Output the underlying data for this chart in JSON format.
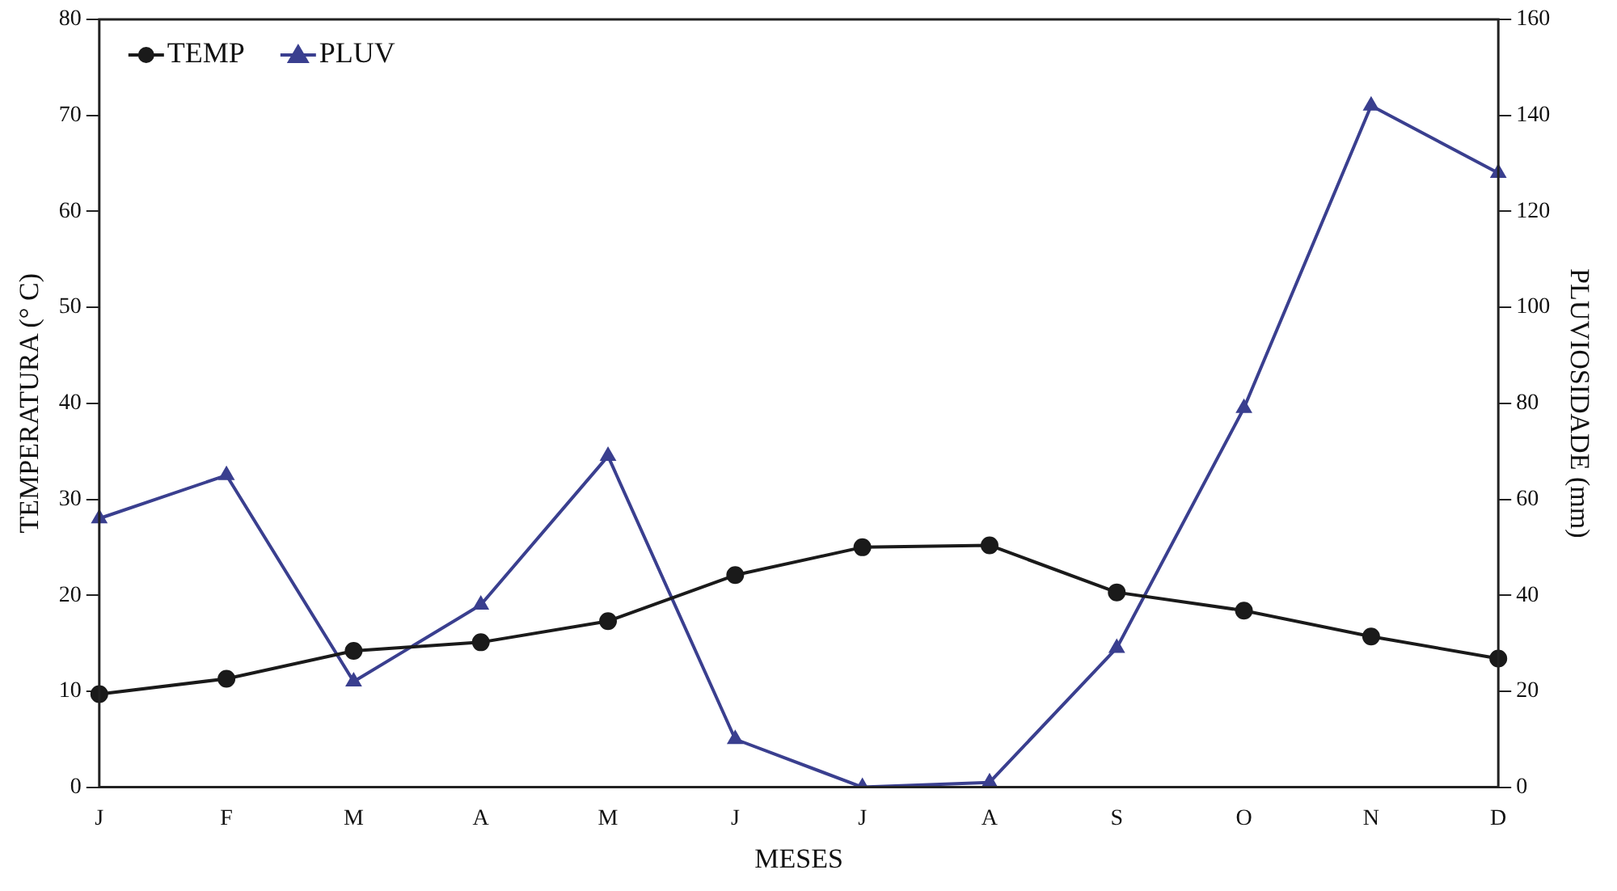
{
  "chart_data": {
    "type": "line",
    "xlabel": "MESES",
    "ylabel": "TEMPERATURA (° C)",
    "y2label": "PLUVIOSIDADE (mm)",
    "categories": [
      "J",
      "F",
      "M",
      "A",
      "M",
      "J",
      "J",
      "A",
      "S",
      "O",
      "N",
      "D"
    ],
    "series": [
      {
        "name": "TEMP",
        "color": "#1a1a1a",
        "marker": "circle",
        "values": [
          9.7,
          11.3,
          14.2,
          15.1,
          17.3,
          22.1,
          25.0,
          25.2,
          20.3,
          18.4,
          15.7,
          13.4
        ]
      },
      {
        "name": "PLUV",
        "color": "#3a3f8f",
        "marker": "triangle",
        "axis": "y2",
        "values": [
          56,
          65,
          22,
          38,
          69,
          10,
          0,
          1,
          29,
          79,
          142,
          128
        ]
      }
    ],
    "ylim": [
      0,
      80
    ],
    "yticks": [
      0,
      10,
      20,
      30,
      40,
      50,
      60,
      70,
      80
    ],
    "y2lim": [
      0,
      160
    ],
    "y2ticks": [
      0,
      20,
      40,
      60,
      80,
      100,
      120,
      140,
      160
    ],
    "grid": false,
    "legend": "top left",
    "line_style": "solid"
  }
}
